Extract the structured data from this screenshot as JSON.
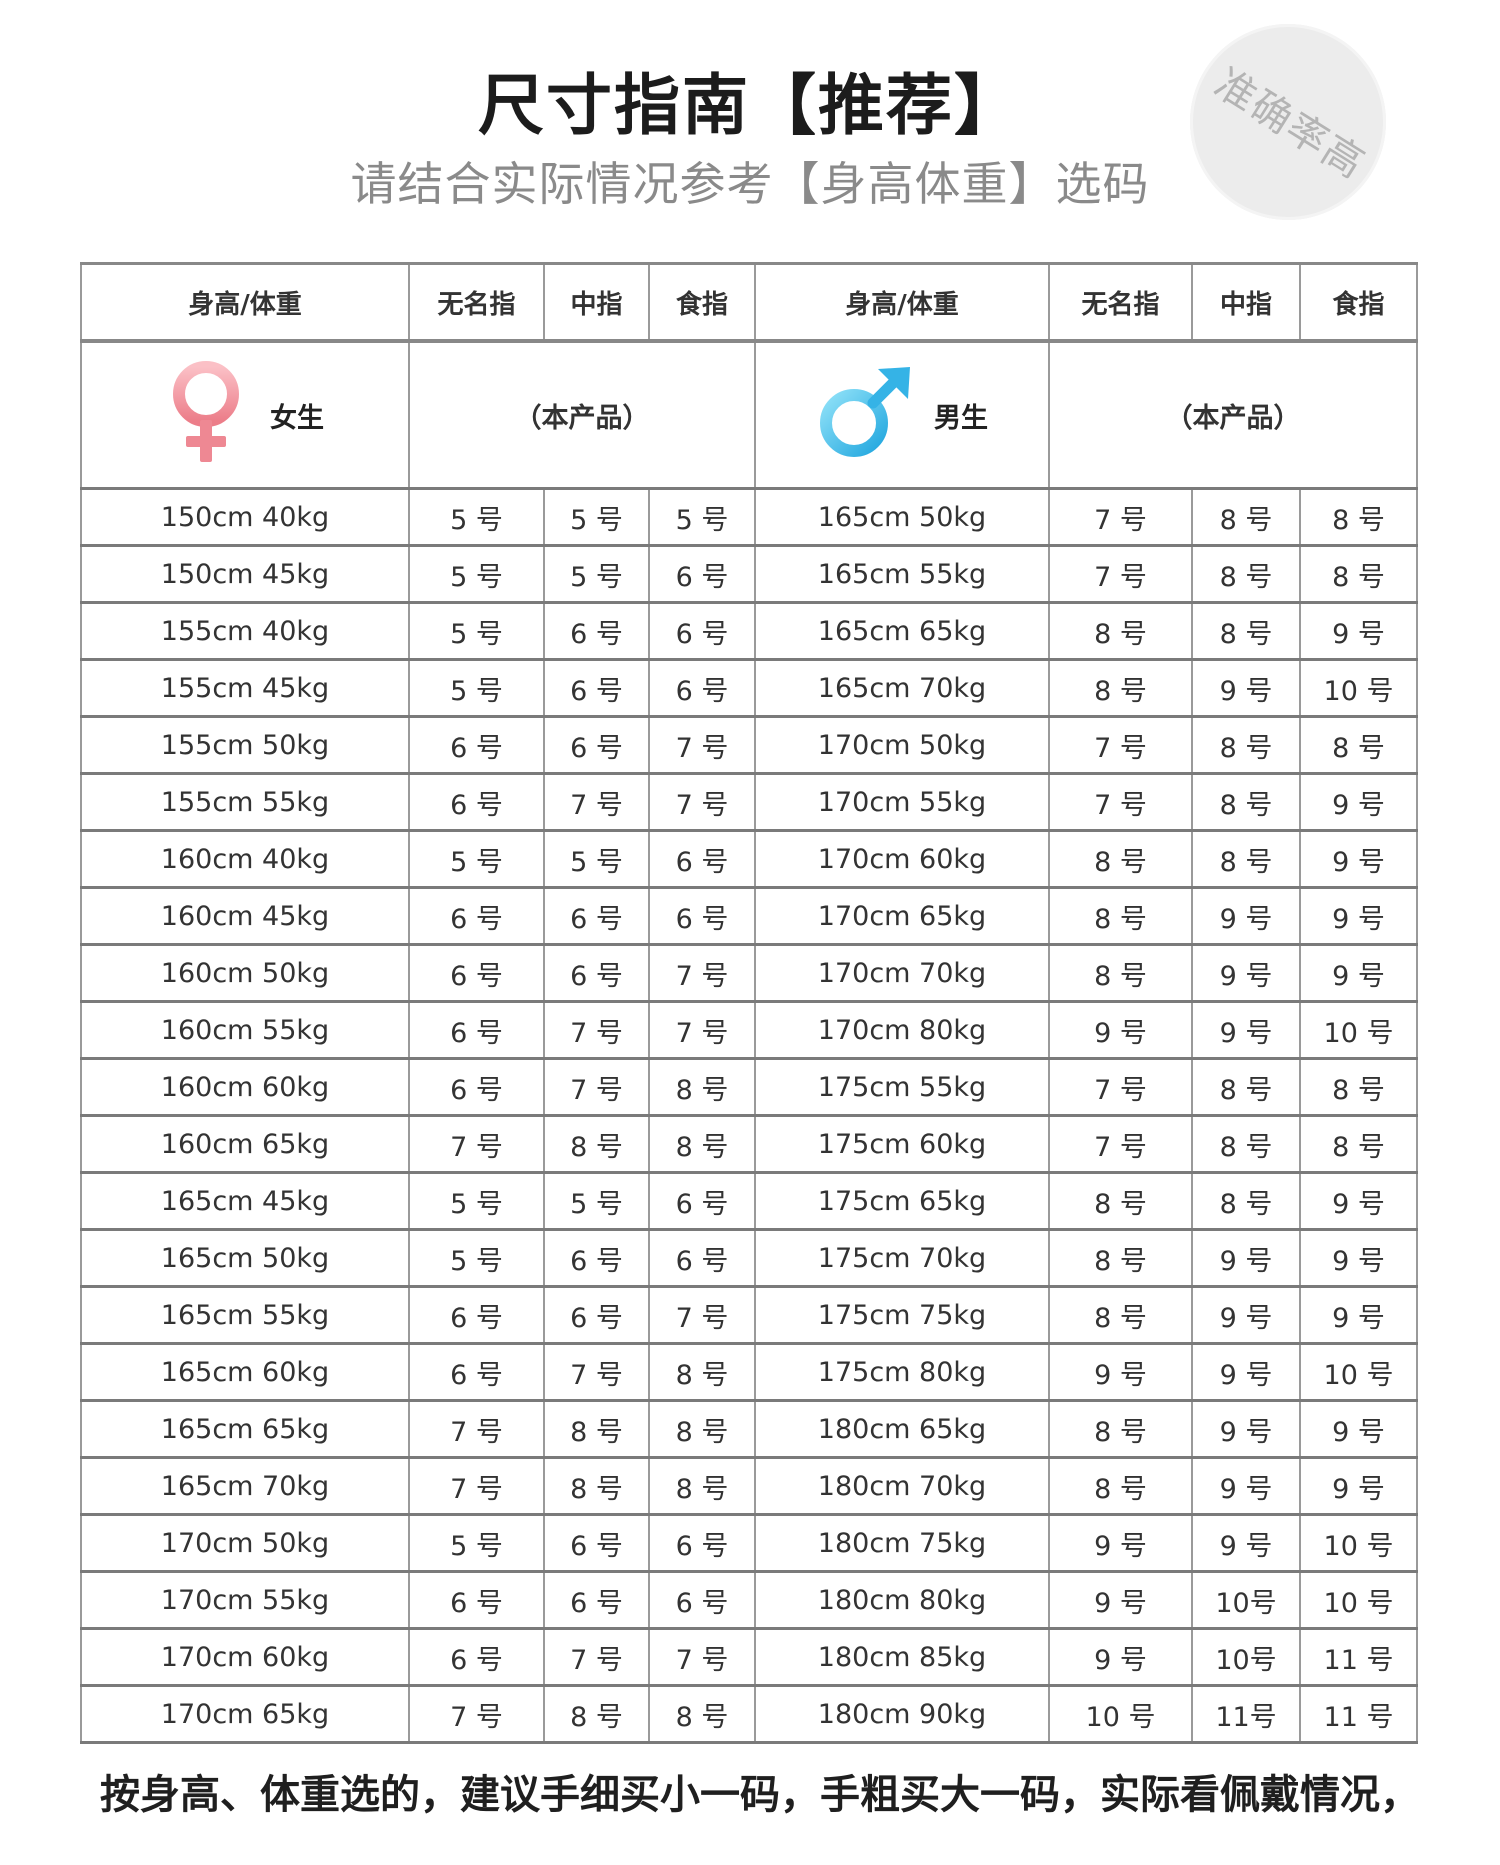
{
  "title": "尺寸指南【推荐】",
  "subtitle": "请结合实际情况参考【身高体重】选码",
  "stamp": "准确率高",
  "headers": {
    "hw": "身高/体重",
    "ring": "无名指",
    "middle": "中指",
    "index": "食指"
  },
  "female": {
    "label": "女生",
    "product": "（本产品）",
    "color": "#f08b95"
  },
  "male": {
    "label": "男生",
    "product": "（本产品）",
    "color": "#3fb7e8"
  },
  "rows": [
    [
      "150cm 40kg",
      "5 号",
      "5 号",
      "5 号",
      "165cm 50kg",
      "7 号",
      "8 号",
      "8 号"
    ],
    [
      "150cm 45kg",
      "5 号",
      "5 号",
      "6 号",
      "165cm 55kg",
      "7 号",
      "8 号",
      "8 号"
    ],
    [
      "155cm 40kg",
      "5 号",
      "6 号",
      "6 号",
      "165cm 65kg",
      "8 号",
      "8 号",
      "9 号"
    ],
    [
      "155cm 45kg",
      "5 号",
      "6 号",
      "6 号",
      "165cm 70kg",
      "8 号",
      "9 号",
      "10 号"
    ],
    [
      "155cm 50kg",
      "6 号",
      "6 号",
      "7 号",
      "170cm 50kg",
      "7 号",
      "8 号",
      "8 号"
    ],
    [
      "155cm 55kg",
      "6 号",
      "7 号",
      "7 号",
      "170cm 55kg",
      "7 号",
      "8 号",
      "9 号"
    ],
    [
      "160cm 40kg",
      "5 号",
      "5 号",
      "6 号",
      "170cm 60kg",
      "8 号",
      "8 号",
      "9 号"
    ],
    [
      "160cm 45kg",
      "6 号",
      "6 号",
      "6 号",
      "170cm 65kg",
      "8 号",
      "9 号",
      "9 号"
    ],
    [
      "160cm 50kg",
      "6 号",
      "6 号",
      "7 号",
      "170cm 70kg",
      "8 号",
      "9 号",
      "9 号"
    ],
    [
      "160cm 55kg",
      "6 号",
      "7 号",
      "7 号",
      "170cm 80kg",
      "9 号",
      "9 号",
      "10 号"
    ],
    [
      "160cm 60kg",
      "6 号",
      "7 号",
      "8 号",
      "175cm 55kg",
      "7 号",
      "8 号",
      "8 号"
    ],
    [
      "160cm 65kg",
      "7 号",
      "8 号",
      "8 号",
      "175cm 60kg",
      "7 号",
      "8 号",
      "8 号"
    ],
    [
      "165cm 45kg",
      "5 号",
      "5 号",
      "6 号",
      "175cm 65kg",
      "8 号",
      "8 号",
      "9 号"
    ],
    [
      "165cm 50kg",
      "5 号",
      "6 号",
      "6 号",
      "175cm 70kg",
      "8 号",
      "9 号",
      "9 号"
    ],
    [
      "165cm 55kg",
      "6 号",
      "6 号",
      "7 号",
      "175cm 75kg",
      "8 号",
      "9 号",
      "9 号"
    ],
    [
      "165cm 60kg",
      "6 号",
      "7 号",
      "8 号",
      "175cm 80kg",
      "9 号",
      "9 号",
      "10 号"
    ],
    [
      "165cm 65kg",
      "7 号",
      "8 号",
      "8 号",
      "180cm 65kg",
      "8 号",
      "9 号",
      "9 号"
    ],
    [
      "165cm 70kg",
      "7 号",
      "8 号",
      "8 号",
      "180cm 70kg",
      "8 号",
      "9 号",
      "9 号"
    ],
    [
      "170cm 50kg",
      "5 号",
      "6 号",
      "6 号",
      "180cm 75kg",
      "9 号",
      "9 号",
      "10 号"
    ],
    [
      "170cm 55kg",
      "6 号",
      "6 号",
      "6 号",
      "180cm 80kg",
      "9 号",
      "10号",
      "10 号"
    ],
    [
      "170cm 60kg",
      "6 号",
      "7 号",
      "7 号",
      "180cm 85kg",
      "9 号",
      "10号",
      "11 号"
    ],
    [
      "170cm 65kg",
      "7 号",
      "8 号",
      "8 号",
      "180cm 90kg",
      "10 号",
      "11号",
      "11 号"
    ]
  ],
  "footer": "按身高、体重选的，建议手细买小一码，手粗买大一码，实际看佩戴情况，"
}
